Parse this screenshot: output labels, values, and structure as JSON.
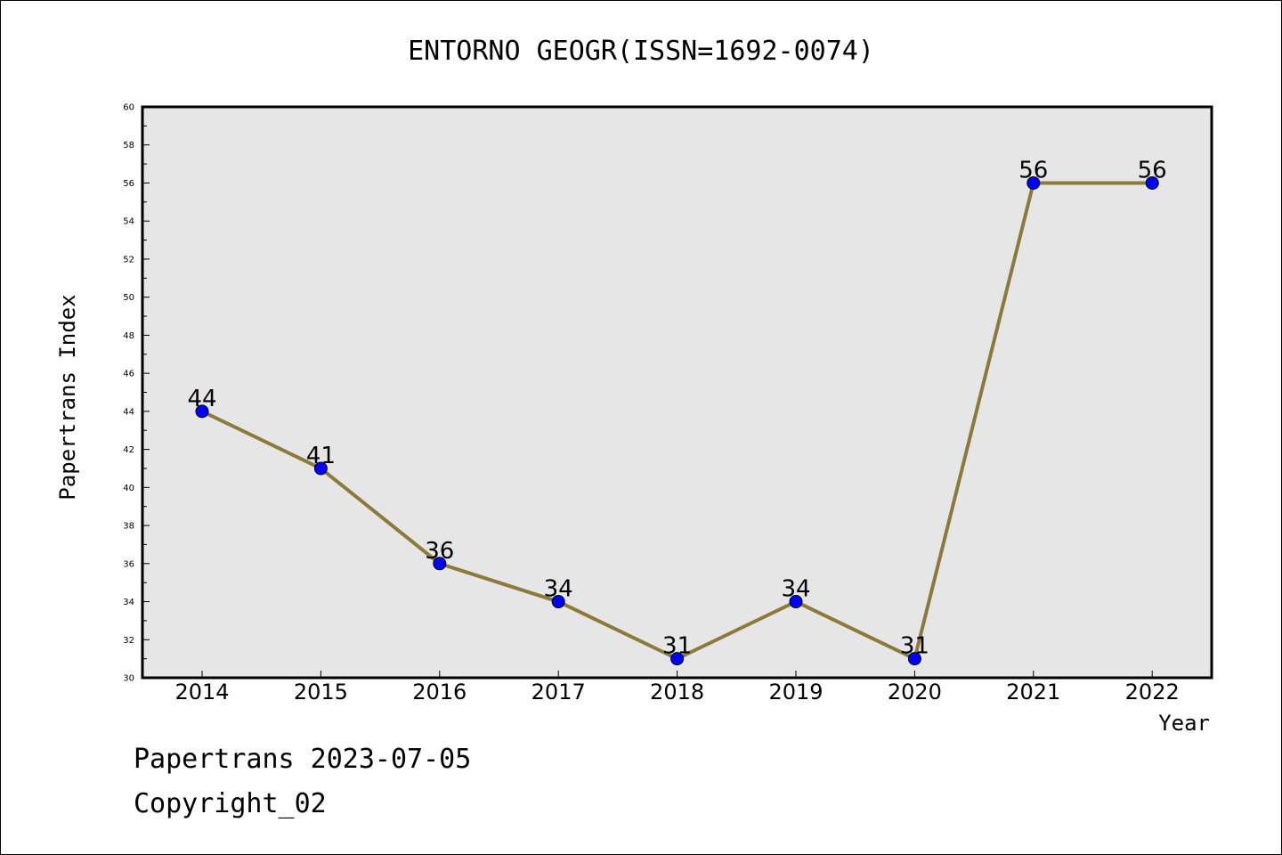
{
  "chart_data": {
    "type": "line",
    "title": "ENTORNO GEOGR(ISSN=1692-0074)",
    "xlabel": "Year",
    "ylabel": "Papertrans Index",
    "categories": [
      "2014",
      "2015",
      "2016",
      "2017",
      "2018",
      "2019",
      "2020",
      "2021",
      "2022"
    ],
    "series": [
      {
        "values": [
          44,
          41,
          36,
          34,
          31,
          34,
          31,
          56,
          56
        ]
      }
    ],
    "ylim": [
      30,
      60
    ],
    "y_major_ticks": [
      "30",
      "32",
      "34",
      "36",
      "38",
      "40",
      "42",
      "44",
      "46",
      "48",
      "50",
      "52",
      "54",
      "56",
      "58",
      "60"
    ],
    "grid": false,
    "legend": "none",
    "data_labels": true,
    "colors": {
      "plot_background": "#e6e6e6",
      "line": "#8b7a3a",
      "marker_fill": "#0000ff",
      "axis": "#000000"
    }
  },
  "footer": {
    "date_text": "Papertrans 2023-07-05",
    "copyright_text": "Copyright_02"
  }
}
